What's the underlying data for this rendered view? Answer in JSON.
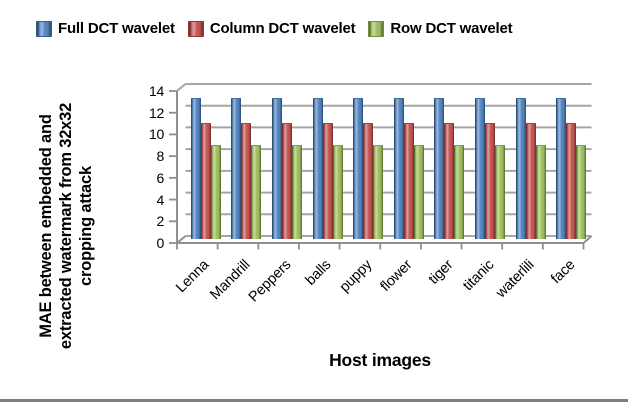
{
  "legend": {
    "items": [
      {
        "label": "Full DCT wavelet",
        "color": "#4F81BD"
      },
      {
        "label": "Column DCT wavelet",
        "color": "#C0504D"
      },
      {
        "label": "Row DCT wavelet",
        "color": "#9BBB59"
      }
    ]
  },
  "chart_data": {
    "type": "bar",
    "style": "3d-column",
    "title": "",
    "xlabel": "Host images",
    "ylabel": "MAE between embedded and extracted watermark from 32x32 cropping attack",
    "ylabel_lines": [
      "MAE between embedded and",
      "extracted watermark from 32x32",
      "cropping attack"
    ],
    "categories": [
      "Lenna",
      "Mandrill",
      "Peppers",
      "balls",
      "puppy",
      "flower",
      "tiger",
      "titanic",
      "waterlili",
      "face"
    ],
    "series": [
      {
        "name": "Full DCT wavelet",
        "color": "#4F81BD",
        "values": [
          12.7,
          12.7,
          12.7,
          12.7,
          12.7,
          12.7,
          12.7,
          12.7,
          12.7,
          12.7
        ]
      },
      {
        "name": "Column DCT wavelet",
        "color": "#C0504D",
        "values": [
          10.4,
          10.4,
          10.4,
          10.4,
          10.4,
          10.4,
          10.4,
          10.4,
          10.4,
          10.4
        ]
      },
      {
        "name": "Row DCT wavelet",
        "color": "#9BBB59",
        "values": [
          8.4,
          8.4,
          8.4,
          8.4,
          8.4,
          8.4,
          8.4,
          8.4,
          8.4,
          8.4
        ]
      }
    ],
    "ylim": [
      0,
      14
    ],
    "ytick_step": 2,
    "y_tick_labels": [
      "0",
      "2",
      "4",
      "6",
      "8",
      "10",
      "12",
      "14"
    ],
    "grid": true,
    "legend_position": "top"
  },
  "colors": {
    "grid": "#A6A6A6",
    "axis": "#8F8F8F",
    "divider": "#7F7F7F",
    "text": "#000000"
  }
}
